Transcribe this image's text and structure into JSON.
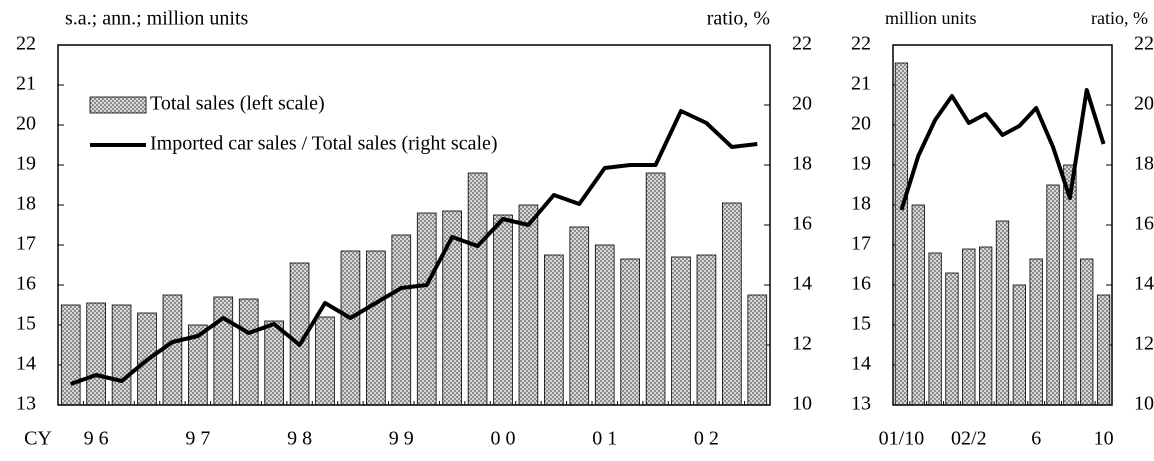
{
  "chart_data": [
    {
      "type": "bar_line",
      "ylabel": "s.a.; ann.; million units",
      "y2label": "ratio, %",
      "x_axis_label": "CY",
      "categories": [
        null,
        "9 6",
        null,
        null,
        null,
        "9 7",
        null,
        null,
        null,
        "9 8",
        null,
        null,
        null,
        "9 9",
        null,
        null,
        null,
        "0 0",
        null,
        null,
        null,
        "0 1",
        null,
        null,
        null,
        "0 2",
        null,
        null
      ],
      "series": [
        {
          "name": "Total sales (left scale)",
          "type": "bar",
          "color": "#8c8c8c",
          "values": [
            15.5,
            15.55,
            15.5,
            15.3,
            15.75,
            15.0,
            15.7,
            15.65,
            15.1,
            16.55,
            15.2,
            16.85,
            16.85,
            17.25,
            17.8,
            17.85,
            18.8,
            17.75,
            18.0,
            16.75,
            17.45,
            17.0,
            16.65,
            18.8,
            16.7,
            16.75,
            18.05,
            15.75
          ]
        },
        {
          "name": "Imported car sales / Total sales (right scale)",
          "type": "line",
          "color": "#000000",
          "axis": "y2",
          "values": [
            10.7,
            11.0,
            10.8,
            11.5,
            12.1,
            12.3,
            12.9,
            12.4,
            12.7,
            12.0,
            13.4,
            12.9,
            13.4,
            13.9,
            14.0,
            15.6,
            15.3,
            16.2,
            16.0,
            17.0,
            16.7,
            17.9,
            18.0,
            18.0,
            19.8,
            19.4,
            18.6,
            18.7
          ]
        }
      ],
      "ylim": [
        13,
        22
      ],
      "yticks": [
        13,
        14,
        15,
        16,
        17,
        18,
        19,
        20,
        21,
        22
      ],
      "y2lim": [
        10,
        22
      ],
      "y2ticks": [
        10,
        12,
        14,
        16,
        18,
        20,
        22
      ],
      "legend": "upper left"
    },
    {
      "type": "bar_line",
      "ylabel": "million units",
      "y2label": "ratio, %",
      "categories": [
        "01/10",
        null,
        null,
        null,
        "02/2",
        null,
        null,
        null,
        "6",
        null,
        null,
        null,
        "10"
      ],
      "series": [
        {
          "type": "bar",
          "color": "#8c8c8c",
          "values": [
            21.55,
            18.0,
            16.8,
            16.3,
            16.9,
            16.95,
            17.6,
            16.0,
            16.65,
            18.5,
            19.0,
            16.65,
            15.75
          ]
        },
        {
          "type": "line",
          "color": "#000000",
          "axis": "y2",
          "values": [
            16.5,
            18.3,
            19.5,
            20.3,
            19.4,
            19.7,
            19.0,
            19.3,
            19.9,
            18.6,
            16.9,
            20.5,
            18.7
          ]
        }
      ],
      "ylim": [
        13,
        22
      ],
      "yticks": [
        13,
        14,
        15,
        16,
        17,
        18,
        19,
        20,
        21,
        22
      ],
      "y2lim": [
        10,
        22
      ],
      "y2ticks": [
        10,
        12,
        14,
        16,
        18,
        20,
        22
      ]
    }
  ]
}
